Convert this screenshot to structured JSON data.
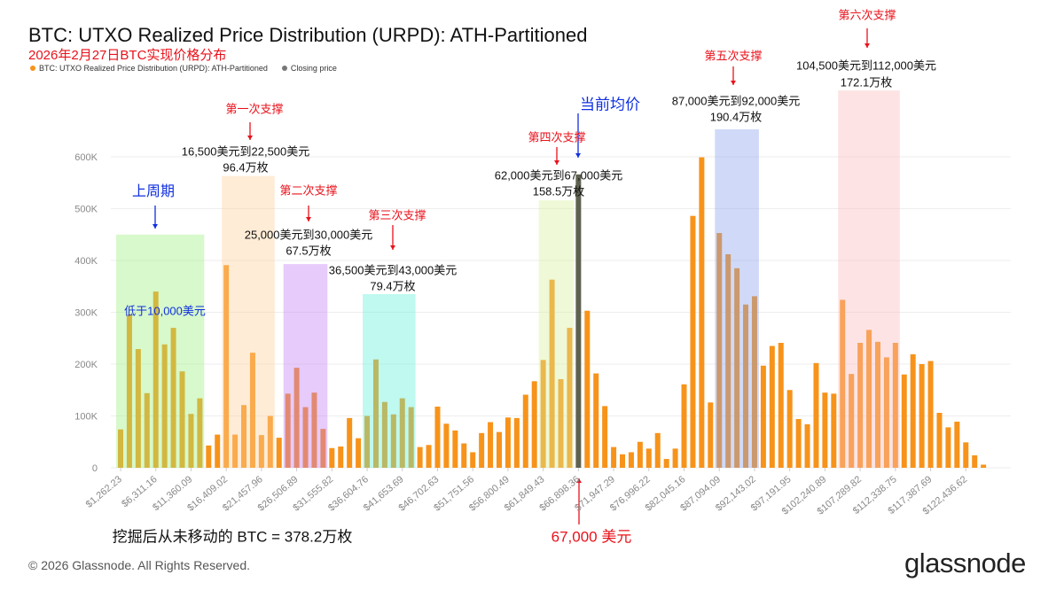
{
  "header": {
    "title": "BTC: UTXO Realized Price Distribution (URPD): ATH-Partitioned",
    "subtitle": "2026年2月27日BTC实现价格分布",
    "legend": [
      {
        "label": "BTC: UTXO Realized Price Distribution (URPD): ATH-Partitioned",
        "color": "#f7931a"
      },
      {
        "label": "Closing price",
        "color": "#777777"
      }
    ]
  },
  "chart_data": {
    "type": "bar",
    "bin_width": 1262.23,
    "ylim": [
      0,
      600000
    ],
    "yticks": [
      "0",
      "100K",
      "200K",
      "300K",
      "400K",
      "500K",
      "600K"
    ],
    "ytick_values": [
      0,
      100000,
      200000,
      300000,
      400000,
      500000,
      600000
    ],
    "xtick_labels": [
      "$1,262.23",
      "$6,311.16",
      "$11,360.09",
      "$16,409.02",
      "$21,457.96",
      "$26,506.89",
      "$31,555.82",
      "$36,604.76",
      "$41,653.69",
      "$46,702.63",
      "$51,751.56",
      "$56,800.49",
      "$61,849.43",
      "$66,898.36",
      "$71,947.29",
      "$76,996.22",
      "$82,045.16",
      "$87,094.09",
      "$92,143.02",
      "$97,191.95",
      "$102,240.89",
      "$107,289.82",
      "$112,338.75",
      "$117,387.69",
      "$122,436.62"
    ],
    "xtick_every_n_bars": 4,
    "grid": true,
    "closing_price_bar_index": 53,
    "values": [
      74000,
      296000,
      229000,
      144000,
      340000,
      238000,
      270000,
      186000,
      104000,
      134000,
      43000,
      64000,
      391000,
      64000,
      121000,
      222000,
      63000,
      100000,
      58000,
      143000,
      193000,
      117000,
      145000,
      75000,
      38000,
      41000,
      96000,
      57000,
      100000,
      209000,
      127000,
      103000,
      134000,
      117000,
      40000,
      44000,
      118000,
      85000,
      72000,
      47000,
      30000,
      67000,
      88000,
      69000,
      97000,
      96000,
      141000,
      167000,
      208000,
      363000,
      171000,
      270000,
      566000,
      303000,
      182000,
      119000,
      40000,
      26000,
      30000,
      50000,
      37000,
      67000,
      17000,
      37000,
      161000,
      486000,
      599000,
      126000,
      453000,
      412000,
      385000,
      315000,
      331000,
      197000,
      235000,
      241000,
      150000,
      94000,
      84000,
      202000,
      145000,
      143000,
      324000,
      181000,
      241000,
      266000,
      243000,
      213000,
      241000,
      180000,
      219000,
      200000,
      206000,
      106000,
      78000,
      89000,
      49000,
      24000,
      6000
    ],
    "colors": {
      "bar": "#f7931a",
      "closing": "#5f6150"
    },
    "bands": [
      {
        "from_bar": 1,
        "to_bar": 10,
        "top": 450000,
        "color": "#9cf07c"
      },
      {
        "from_bar": 13,
        "to_bar": 18,
        "top": 563000,
        "color": "#ffd09a"
      },
      {
        "from_bar": 20,
        "to_bar": 24,
        "top": 393000,
        "color": "#c27cf5"
      },
      {
        "from_bar": 29,
        "to_bar": 34,
        "top": 335000,
        "color": "#5ff0d8"
      },
      {
        "from_bar": 49,
        "to_bar": 52,
        "top": 516000,
        "color": "#d8f09a"
      },
      {
        "from_bar": 69,
        "to_bar": 73,
        "top": 653000,
        "color": "#8aa2ee"
      },
      {
        "from_bar": 83,
        "to_bar": 89,
        "top": 728000,
        "color": "#fbb8bc"
      }
    ]
  },
  "annotations": {
    "s1": {
      "label": "第一次支撑",
      "range": "16,500美元到22,500美元",
      "amount": "96.4万枚"
    },
    "s2": {
      "label": "第二次支撑",
      "range": "25,000美元到30,000美元",
      "amount": "67.5万枚"
    },
    "s3": {
      "label": "第三次支撑",
      "range": "36,500美元到43,000美元",
      "amount": "79.4万枚"
    },
    "s4": {
      "label": "第四次支撑",
      "range": "62,000美元到67,000美元",
      "amount": "158.5万枚"
    },
    "s5": {
      "label": "第五次支撑",
      "range": "87,000美元到92,000美元",
      "amount": "190.4万枚"
    },
    "s6": {
      "label": "第六次支撑",
      "range": "104,500美元到112,000美元",
      "amount": "172.1万枚"
    },
    "prev_cycle": "上周期",
    "below_10k": "低于10,000美元",
    "current_avg": "当前均价",
    "never_moved": "挖掘后从未移动的 BTC = 378.2万枚",
    "price_67k": "67,000 美元"
  },
  "footer": {
    "copyright": "© 2026 Glassnode. All Rights Reserved.",
    "logo": "glassnode"
  }
}
